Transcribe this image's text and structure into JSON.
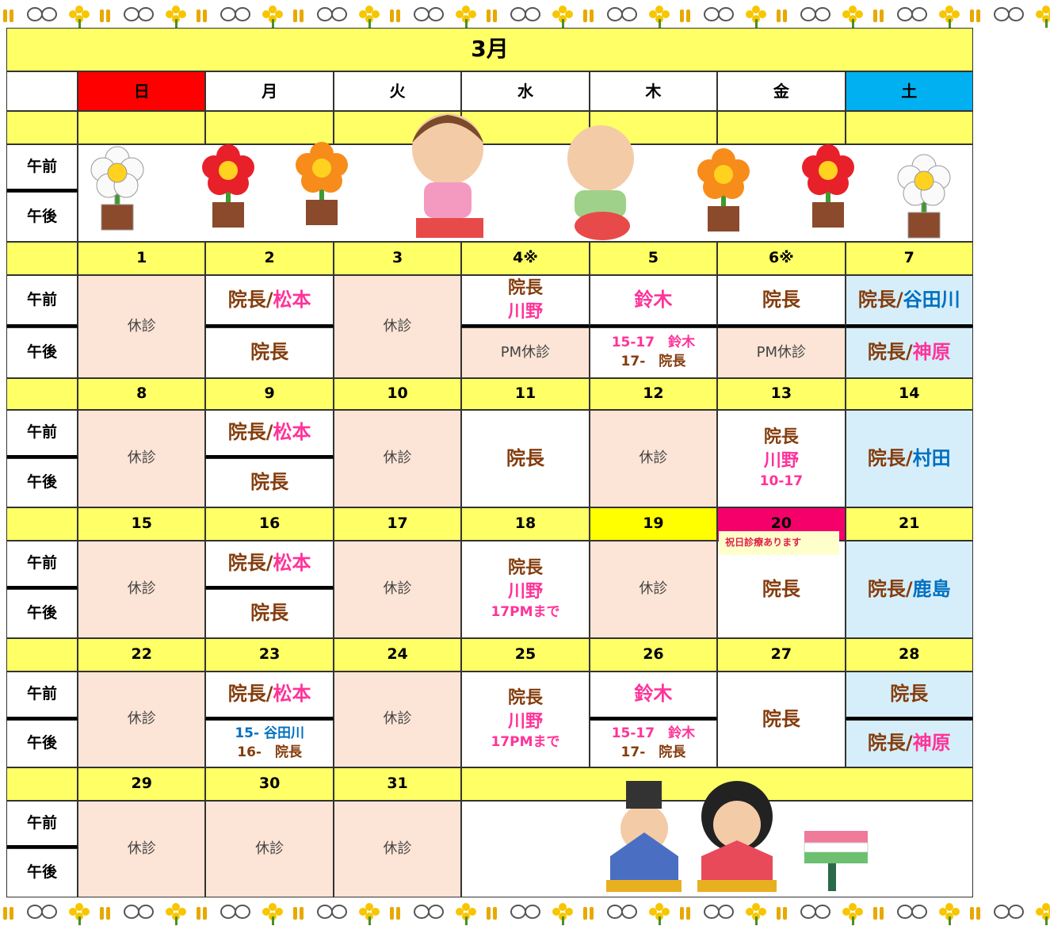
{
  "title": "3月",
  "weekdays": [
    "日",
    "月",
    "火",
    "水",
    "木",
    "金",
    "土"
  ],
  "weekday_colors": [
    "#ff0000",
    null,
    null,
    null,
    null,
    null,
    "#00b0f0"
  ],
  "am_label": "午前",
  "pm_label": "午後",
  "weeks": [
    {
      "dates": [
        {
          "t": "1"
        },
        {
          "t": "2"
        },
        {
          "t": "3"
        },
        {
          "t": "4※"
        },
        {
          "t": "5"
        },
        {
          "t": "6※"
        },
        {
          "t": "7"
        }
      ],
      "cells": [
        {
          "bg": "#fce4d6",
          "all": [
            [
              {
                "t": "休診",
                "c": "#444444"
              }
            ]
          ]
        },
        {
          "am": {
            "lines": [
              [
                {
                  "t": "院長",
                  "c": "#843c0c"
                },
                {
                  "t": "/",
                  "c": "#843c0c"
                },
                {
                  "t": "松本",
                  "c": "#ff3399"
                }
              ]
            ]
          },
          "pm": {
            "lines": [
              [
                {
                  "t": "院長",
                  "c": "#843c0c"
                }
              ]
            ]
          }
        },
        {
          "bg": "#fce4d6",
          "all": [
            [
              {
                "t": "休診",
                "c": "#444444"
              }
            ]
          ]
        },
        {
          "am": {
            "lines": [
              [
                {
                  "t": "院長",
                  "c": "#843c0c"
                }
              ],
              [
                {
                  "t": "川野",
                  "c": "#ff3399"
                }
              ]
            ]
          },
          "pm": {
            "bg": "#fce4d6",
            "lines": [
              [
                {
                  "t": "PM休診",
                  "c": "#444444"
                }
              ]
            ]
          }
        },
        {
          "am": {
            "lines": [
              [
                {
                  "t": "鈴木",
                  "c": "#ff3399"
                }
              ]
            ]
          },
          "pm": {
            "lines": [
              [
                {
                  "t": "15-17　鈴木",
                  "c": "#ff3399"
                }
              ],
              [
                {
                  "t": "17-　院長",
                  "c": "#843c0c"
                }
              ]
            ]
          }
        },
        {
          "am": {
            "lines": [
              [
                {
                  "t": "院長",
                  "c": "#843c0c"
                }
              ]
            ]
          },
          "pm": {
            "bg": "#fce4d6",
            "lines": [
              [
                {
                  "t": "PM休診",
                  "c": "#444444"
                }
              ]
            ]
          }
        },
        {
          "am": {
            "bg": "#d6eefa",
            "lines": [
              [
                {
                  "t": "院長",
                  "c": "#843c0c"
                },
                {
                  "t": "/",
                  "c": "#843c0c"
                },
                {
                  "t": "谷田川",
                  "c": "#0070c0"
                }
              ]
            ]
          },
          "pm": {
            "bg": "#d6eefa",
            "lines": [
              [
                {
                  "t": "院長",
                  "c": "#843c0c"
                },
                {
                  "t": "/",
                  "c": "#843c0c"
                },
                {
                  "t": "神原",
                  "c": "#ff3399"
                }
              ]
            ]
          }
        }
      ]
    },
    {
      "dates": [
        {
          "t": "8"
        },
        {
          "t": "9"
        },
        {
          "t": "10"
        },
        {
          "t": "11"
        },
        {
          "t": "12"
        },
        {
          "t": "13"
        },
        {
          "t": "14"
        }
      ],
      "cells": [
        {
          "bg": "#fce4d6",
          "all": [
            [
              {
                "t": "休診",
                "c": "#444444"
              }
            ]
          ]
        },
        {
          "am": {
            "lines": [
              [
                {
                  "t": "院長",
                  "c": "#843c0c"
                },
                {
                  "t": "/",
                  "c": "#843c0c"
                },
                {
                  "t": "松本",
                  "c": "#ff3399"
                }
              ]
            ]
          },
          "pm": {
            "lines": [
              [
                {
                  "t": "院長",
                  "c": "#843c0c"
                }
              ]
            ]
          }
        },
        {
          "bg": "#fce4d6",
          "all": [
            [
              {
                "t": "休診",
                "c": "#444444"
              }
            ]
          ]
        },
        {
          "all": [
            [
              {
                "t": "院長",
                "c": "#843c0c"
              }
            ]
          ]
        },
        {
          "bg": "#fce4d6",
          "all": [
            [
              {
                "t": "休診",
                "c": "#444444"
              }
            ]
          ]
        },
        {
          "all": [
            [
              {
                "t": "院長",
                "c": "#843c0c"
              }
            ],
            [
              {
                "t": "川野",
                "c": "#ff3399"
              }
            ],
            [
              {
                "t": "10-17",
                "c": "#ff3399"
              }
            ]
          ]
        },
        {
          "bg": "#d6eefa",
          "all": [
            [
              {
                "t": "院長",
                "c": "#843c0c"
              },
              {
                "t": "/",
                "c": "#843c0c"
              },
              {
                "t": "村田",
                "c": "#0070c0"
              }
            ]
          ]
        }
      ]
    },
    {
      "dates": [
        {
          "t": "15"
        },
        {
          "t": "16"
        },
        {
          "t": "17"
        },
        {
          "t": "18"
        },
        {
          "t": "19",
          "bg": "#ffff00"
        },
        {
          "t": "20",
          "bg": "#f5006a",
          "note": "祝日診療あります"
        },
        {
          "t": "21"
        }
      ],
      "cells": [
        {
          "bg": "#fce4d6",
          "all": [
            [
              {
                "t": "休診",
                "c": "#444444"
              }
            ]
          ]
        },
        {
          "am": {
            "lines": [
              [
                {
                  "t": "院長",
                  "c": "#843c0c"
                },
                {
                  "t": "/",
                  "c": "#843c0c"
                },
                {
                  "t": "松本",
                  "c": "#ff3399"
                }
              ]
            ]
          },
          "pm": {
            "lines": [
              [
                {
                  "t": "院長",
                  "c": "#843c0c"
                }
              ]
            ]
          }
        },
        {
          "bg": "#fce4d6",
          "all": [
            [
              {
                "t": "休診",
                "c": "#444444"
              }
            ]
          ]
        },
        {
          "all": [
            [
              {
                "t": "院長",
                "c": "#843c0c"
              }
            ],
            [
              {
                "t": "川野",
                "c": "#ff3399"
              }
            ],
            [
              {
                "t": "17PMまで",
                "c": "#ff3399"
              }
            ]
          ]
        },
        {
          "bg": "#fce4d6",
          "all": [
            [
              {
                "t": "休診",
                "c": "#444444"
              }
            ]
          ]
        },
        {
          "all": [
            [
              {
                "t": "院長",
                "c": "#843c0c"
              }
            ]
          ]
        },
        {
          "bg": "#d6eefa",
          "all": [
            [
              {
                "t": "院長",
                "c": "#843c0c"
              },
              {
                "t": "/",
                "c": "#843c0c"
              },
              {
                "t": "鹿島",
                "c": "#0070c0"
              }
            ]
          ]
        }
      ]
    },
    {
      "dates": [
        {
          "t": "22"
        },
        {
          "t": "23"
        },
        {
          "t": "24"
        },
        {
          "t": "25"
        },
        {
          "t": "26"
        },
        {
          "t": "27"
        },
        {
          "t": "28"
        }
      ],
      "cells": [
        {
          "bg": "#fce4d6",
          "all": [
            [
              {
                "t": "休診",
                "c": "#444444"
              }
            ]
          ]
        },
        {
          "am": {
            "lines": [
              [
                {
                  "t": "院長",
                  "c": "#843c0c"
                },
                {
                  "t": "/",
                  "c": "#843c0c"
                },
                {
                  "t": "松本",
                  "c": "#ff3399"
                }
              ]
            ]
          },
          "pm": {
            "lines": [
              [
                {
                  "t": "15- 谷田川",
                  "c": "#0070c0"
                }
              ],
              [
                {
                  "t": "16-　院長",
                  "c": "#843c0c"
                }
              ]
            ]
          }
        },
        {
          "bg": "#fce4d6",
          "all": [
            [
              {
                "t": "休診",
                "c": "#444444"
              }
            ]
          ]
        },
        {
          "all": [
            [
              {
                "t": "院長",
                "c": "#843c0c"
              }
            ],
            [
              {
                "t": "川野",
                "c": "#ff3399"
              }
            ],
            [
              {
                "t": "17PMまで",
                "c": "#ff3399"
              }
            ]
          ]
        },
        {
          "am": {
            "lines": [
              [
                {
                  "t": "鈴木",
                  "c": "#ff3399"
                }
              ]
            ]
          },
          "pm": {
            "lines": [
              [
                {
                  "t": "15-17　鈴木",
                  "c": "#ff3399"
                }
              ],
              [
                {
                  "t": "17-　院長",
                  "c": "#843c0c"
                }
              ]
            ]
          }
        },
        {
          "all": [
            [
              {
                "t": "院長",
                "c": "#843c0c"
              }
            ]
          ]
        },
        {
          "am": {
            "bg": "#d6eefa",
            "lines": [
              [
                {
                  "t": "院長",
                  "c": "#843c0c"
                }
              ]
            ]
          },
          "pm": {
            "bg": "#d6eefa",
            "lines": [
              [
                {
                  "t": "院長",
                  "c": "#843c0c"
                },
                {
                  "t": "/",
                  "c": "#843c0c"
                },
                {
                  "t": "神原",
                  "c": "#ff3399"
                }
              ]
            ]
          }
        }
      ]
    },
    {
      "dates": [
        {
          "t": "29"
        },
        {
          "t": "30"
        },
        {
          "t": "31"
        },
        null,
        null,
        null,
        null
      ],
      "cells": [
        {
          "bg": "#fce4d6",
          "all": [
            [
              {
                "t": "休診",
                "c": "#444444"
              }
            ]
          ]
        },
        {
          "bg": "#fce4d6",
          "all": [
            [
              {
                "t": "休診",
                "c": "#444444"
              }
            ]
          ]
        },
        {
          "bg": "#fce4d6",
          "all": [
            [
              {
                "t": "休診",
                "c": "#444444"
              }
            ]
          ]
        },
        null,
        null,
        null,
        null
      ]
    }
  ]
}
